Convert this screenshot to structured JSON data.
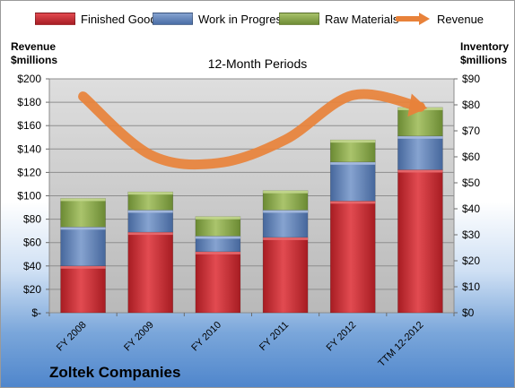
{
  "chart_data": {
    "type": "bar",
    "title": "12-Month Periods",
    "categories": [
      "FY 2008",
      "FY 2009",
      "FY 2010",
      "FY 2011",
      "FY 2012",
      "TTM 12-2012"
    ],
    "stacked": true,
    "series": [
      {
        "name": "Finished Goods",
        "axis": "right",
        "color": "#c0222a",
        "values": [
          18,
          31,
          23.5,
          29,
          43,
          55
        ]
      },
      {
        "name": "Work in Progress",
        "axis": "right",
        "color": "#5b80b8",
        "values": [
          15,
          8.5,
          6,
          10.5,
          15,
          13
        ]
      },
      {
        "name": "Raw Materials",
        "axis": "right",
        "color": "#8aa84a",
        "values": [
          11,
          7,
          7.5,
          7.5,
          8.5,
          11
        ]
      },
      {
        "name": "Revenue",
        "axis": "left",
        "type": "line",
        "color": "#e8823a",
        "values": [
          185,
          135,
          128,
          148,
          186,
          176
        ]
      }
    ],
    "y_left": {
      "label": [
        "Revenue",
        "$millions"
      ],
      "ylim": [
        0,
        200
      ],
      "ticks": [
        "$-",
        "$20",
        "$40",
        "$60",
        "$80",
        "$100",
        "$120",
        "$140",
        "$160",
        "$180",
        "$200"
      ]
    },
    "y_right": {
      "label": [
        "Inventory",
        "$millions"
      ],
      "ylim": [
        0,
        90
      ],
      "ticks": [
        "$0",
        "$10",
        "$20",
        "$30",
        "$40",
        "$50",
        "$60",
        "$70",
        "$80",
        "$90"
      ]
    },
    "grid": true,
    "legend": "top"
  },
  "company": "Zoltek Companies"
}
